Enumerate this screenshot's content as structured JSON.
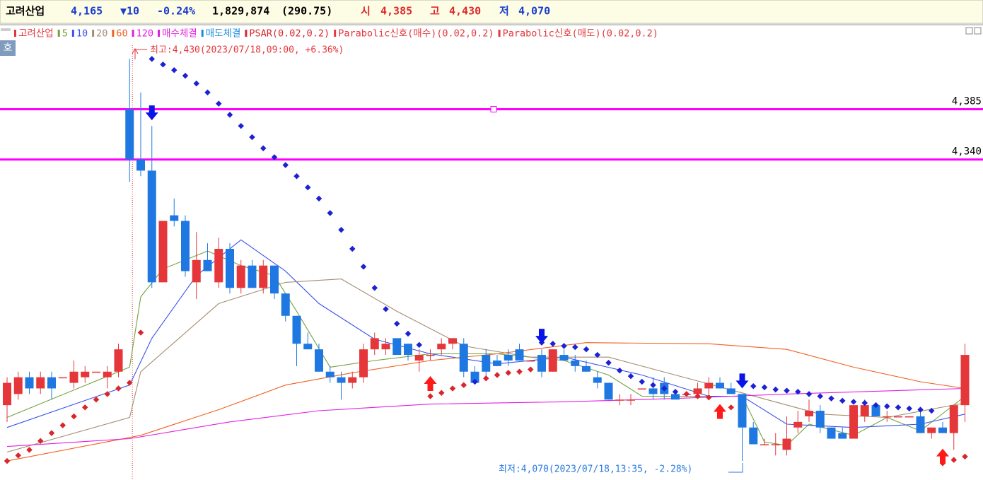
{
  "header": {
    "name": "고려산업",
    "price": "4,165",
    "change": "▼10",
    "change_pct": "-0.24%",
    "volume": "1,829,874",
    "volume_ratio": "(290.75)",
    "open_label": "시",
    "open": "4,385",
    "high_label": "고",
    "high": "4,430",
    "low_label": "저",
    "low": "4,070"
  },
  "quote_button": "호",
  "chart_data": {
    "type": "candlestick",
    "name": "고려산업",
    "up_color": "#e5363a",
    "down_color": "#1f78e2",
    "open": [
      4120,
      4130,
      4145,
      4135,
      4145,
      4145,
      4140,
      4145,
      4150,
      4145,
      4150,
      4385,
      4340,
      4330,
      4230,
      4290,
      4285,
      4230,
      4250,
      4230,
      4260,
      4225,
      4245,
      4225,
      4245,
      4220,
      4200,
      4175,
      4170,
      4150,
      4145,
      4140,
      4145,
      4170,
      4170,
      4180,
      4175,
      4160,
      4165,
      4170,
      4175,
      4175,
      4150,
      4165,
      4160,
      4165,
      4170,
      4160,
      4165,
      4150,
      4165,
      4160,
      4155,
      4145,
      4140,
      4125,
      4125,
      4135,
      4135,
      4140,
      4130,
      4130,
      4130,
      4135,
      4140,
      4135,
      4130,
      4100,
      4085,
      4085,
      4080,
      4100,
      4110,
      4115,
      4100,
      4095,
      4090,
      4110,
      4120,
      4110,
      4110,
      4110,
      4110,
      4095,
      4100,
      4095,
      4120
    ],
    "high": [
      4145,
      4150,
      4150,
      4150,
      4150,
      4145,
      4160,
      4155,
      4150,
      4155,
      4175,
      4430,
      4400,
      4370,
      4285,
      4305,
      4290,
      4275,
      4265,
      4270,
      4265,
      4250,
      4250,
      4250,
      4245,
      4220,
      4200,
      4185,
      4175,
      4155,
      4150,
      4150,
      4175,
      4185,
      4180,
      4180,
      4175,
      4170,
      4170,
      4180,
      4180,
      4180,
      4155,
      4170,
      4165,
      4170,
      4175,
      4160,
      4170,
      4170,
      4170,
      4165,
      4160,
      4150,
      4140,
      4130,
      4130,
      4135,
      4145,
      4145,
      4130,
      4130,
      4140,
      4145,
      4145,
      4140,
      4130,
      4105,
      4090,
      4095,
      4110,
      4115,
      4125,
      4120,
      4100,
      4100,
      4120,
      4125,
      4120,
      4115,
      4110,
      4110,
      4115,
      4100,
      4105,
      4120,
      4175
    ],
    "low": [
      4105,
      4125,
      4130,
      4130,
      4125,
      4145,
      4135,
      4140,
      4150,
      4135,
      4145,
      4320,
      4325,
      4225,
      4230,
      4280,
      4235,
      4215,
      4240,
      4225,
      4220,
      4220,
      4225,
      4220,
      4215,
      4195,
      4155,
      4170,
      4150,
      4140,
      4125,
      4135,
      4140,
      4165,
      4165,
      4165,
      4160,
      4150,
      4160,
      4165,
      4170,
      4145,
      4140,
      4145,
      4155,
      4155,
      4160,
      4160,
      4145,
      4150,
      4160,
      4150,
      4150,
      4135,
      4125,
      4120,
      4120,
      4135,
      4125,
      4125,
      4125,
      4130,
      4130,
      4130,
      4135,
      4130,
      4070,
      4085,
      4085,
      4075,
      4075,
      4095,
      4105,
      4095,
      4090,
      4090,
      4090,
      4105,
      4110,
      4105,
      4110,
      4110,
      4095,
      4090,
      4095,
      4080,
      4105
    ],
    "close": [
      4140,
      4145,
      4135,
      4145,
      4135,
      4145,
      4150,
      4150,
      4150,
      4150,
      4170,
      4340,
      4330,
      4230,
      4285,
      4285,
      4240,
      4250,
      4240,
      4260,
      4225,
      4245,
      4225,
      4245,
      4220,
      4200,
      4175,
      4170,
      4150,
      4145,
      4140,
      4145,
      4170,
      4180,
      4175,
      4165,
      4165,
      4165,
      4165,
      4175,
      4180,
      4150,
      4140,
      4150,
      4155,
      4160,
      4160,
      4160,
      4150,
      4170,
      4160,
      4155,
      4150,
      4140,
      4125,
      4125,
      4125,
      4135,
      4130,
      4130,
      4125,
      4130,
      4135,
      4140,
      4135,
      4130,
      4100,
      4085,
      4085,
      4085,
      4090,
      4105,
      4115,
      4100,
      4090,
      4090,
      4120,
      4120,
      4110,
      4110,
      4110,
      4110,
      4095,
      4100,
      4095,
      4120,
      4165
    ],
    "ylim": [
      4053,
      4460
    ],
    "yticks": [
      {
        "value": 4385,
        "label": "4,385"
      },
      {
        "value": 4340,
        "label": "4,340"
      }
    ],
    "ytick_line_color": "#ff00ff",
    "session_start_index": 11,
    "series": [
      {
        "name": "5",
        "color": "#74a23c",
        "x": [
          0,
          11,
          12,
          14,
          18,
          21,
          24,
          26,
          29,
          33,
          38,
          44,
          50,
          54,
          57,
          63,
          66,
          68,
          70,
          72,
          76,
          79,
          82,
          86
        ],
        "values": [
          4109,
          4154,
          4217,
          4242,
          4258,
          4245,
          4236,
          4204,
          4154,
          4160,
          4166,
          4166,
          4160,
          4147,
          4128,
          4128,
          4128,
          4087,
          4084,
          4103,
          4093,
          4109,
          4097,
          4128
        ]
      },
      {
        "name": "10",
        "color": "#3a52ea",
        "x": [
          0,
          11,
          13,
          17,
          21,
          25,
          28,
          33,
          38,
          44,
          50,
          57,
          63,
          66,
          70,
          76,
          82,
          86
        ],
        "values": [
          4100,
          4138,
          4180,
          4236,
          4268,
          4240,
          4211,
          4179,
          4166,
          4157,
          4163,
          4147,
          4128,
          4128,
          4103,
          4100,
          4103,
          4112
        ]
      },
      {
        "name": "20",
        "color": "#a48e72",
        "x": [
          0,
          11,
          12,
          19,
          25,
          30,
          35,
          41,
          47,
          54,
          60,
          66,
          73,
          79,
          86
        ],
        "values": [
          4078,
          4109,
          4150,
          4211,
          4230,
          4233,
          4204,
          4173,
          4163,
          4163,
          4147,
          4131,
          4112,
          4109,
          4122
        ]
      },
      {
        "name": "60",
        "color": "#f2601e",
        "x": [
          0,
          12,
          19,
          25,
          31,
          38,
          44,
          52,
          63,
          70,
          76,
          82,
          86
        ],
        "values": [
          4070,
          4093,
          4116,
          4138,
          4149,
          4160,
          4166,
          4176,
          4175,
          4170,
          4154,
          4141,
          4135
        ]
      },
      {
        "name": "120",
        "color": "#e21fe2",
        "x": [
          0,
          11,
          20,
          28,
          38,
          50,
          60,
          70,
          86
        ],
        "values": [
          4083,
          4090,
          4105,
          4115,
          4121,
          4123,
          4126,
          4130,
          4135
        ]
      }
    ],
    "legend_extra": [
      {
        "name": "매수체결",
        "color": "#e21fe2"
      },
      {
        "name": "매도체결",
        "color": "#1a8cdc"
      }
    ],
    "psar": {
      "name": "PSAR(0.02,0.2)",
      "color": "#d9262c",
      "above_color": "#1c22d4",
      "values": [
        4070,
        4075,
        4080,
        4088,
        4095,
        4102,
        4110,
        4118,
        4125,
        4130,
        4135,
        4140,
        4185,
        4430,
        4425,
        4420,
        4415,
        4408,
        4400,
        4390,
        4380,
        4370,
        4360,
        4350,
        4342,
        4335,
        4325,
        4315,
        4305,
        4292,
        4277,
        4260,
        4244,
        4225,
        4206,
        4193,
        4184,
        4174,
        4128,
        4131,
        4135,
        4138,
        4141,
        4144,
        4147,
        4149,
        4150,
        4152,
        4176,
        4175,
        4173,
        4172,
        4170,
        4165,
        4158,
        4151,
        4146,
        4141,
        4138,
        4135,
        4132,
        4130,
        4128,
        4127,
        4117,
        4118,
        4139,
        4137,
        4136,
        4134,
        4133,
        4132,
        4130,
        4128,
        4126,
        4124,
        4123,
        4122,
        4120,
        4119,
        4118,
        4117,
        4116,
        4115,
        4068,
        4071,
        4074
      ]
    },
    "buy_signals": {
      "name": "Parabolic신호(매수)(0.02,0.2)",
      "color": "#ff1a1a",
      "legend_color": "#e5363a",
      "x": [
        38,
        64,
        84
      ]
    },
    "sell_signals": {
      "name": "Parabolic신호(매도)(0.02,0.2)",
      "color": "#0a14e6",
      "legend_color": "#e5363a",
      "x": [
        13,
        48,
        66
      ]
    },
    "annotations": [
      {
        "text": "최고:4,430(2023/07/18,09:00, +6.36%)",
        "color": "#e5363a"
      },
      {
        "text": "최저:4,070(2023/07/18,13:35, -2.28%)",
        "color": "#2a7ae0"
      }
    ]
  }
}
